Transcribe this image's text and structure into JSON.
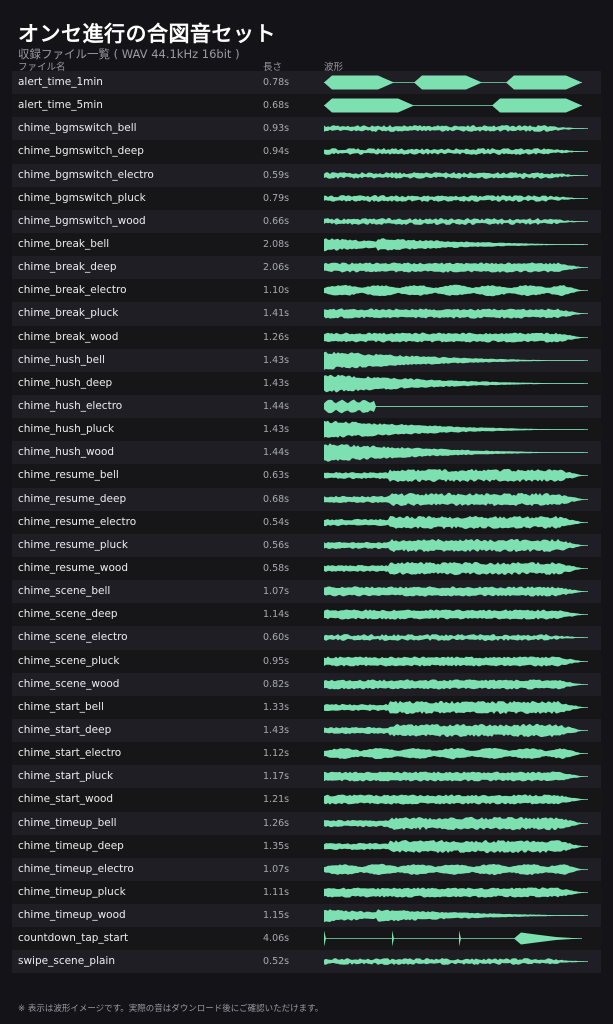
{
  "page": {
    "title": "オンセ進行の合図音セット",
    "subtitle": "収録ファイル一覧 ( WAV 44.1kHz 16bit )",
    "footnote": "※ 表示は波形イメージです。実際の音はダウンロード後にご確認いただけます。"
  },
  "columns": {
    "name": "ファイル名",
    "length": "長さ",
    "waveform": "波形"
  },
  "colors": {
    "accent": "#7de0b1",
    "background": "#141418"
  },
  "files": [
    {
      "name": "alert_time_1min",
      "length": "0.78s",
      "wave": "alert3"
    },
    {
      "name": "alert_time_5min",
      "length": "0.68s",
      "wave": "alert2"
    },
    {
      "name": "chime_bgmswitch_bell",
      "length": "0.93s",
      "wave": "noise"
    },
    {
      "name": "chime_bgmswitch_deep",
      "length": "0.94s",
      "wave": "noise"
    },
    {
      "name": "chime_bgmswitch_electro",
      "length": "0.59s",
      "wave": "noise"
    },
    {
      "name": "chime_bgmswitch_pluck",
      "length": "0.79s",
      "wave": "noise"
    },
    {
      "name": "chime_bgmswitch_wood",
      "length": "0.66s",
      "wave": "noise"
    },
    {
      "name": "chime_break_bell",
      "length": "2.08s",
      "wave": "decay2"
    },
    {
      "name": "chime_break_deep",
      "length": "2.06s",
      "wave": "sustain"
    },
    {
      "name": "chime_break_electro",
      "length": "1.10s",
      "wave": "pulse"
    },
    {
      "name": "chime_break_pluck",
      "length": "1.41s",
      "wave": "sustain"
    },
    {
      "name": "chime_break_wood",
      "length": "1.26s",
      "wave": "sustain"
    },
    {
      "name": "chime_hush_bell",
      "length": "1.43s",
      "wave": "decay"
    },
    {
      "name": "chime_hush_deep",
      "length": "1.43s",
      "wave": "decay"
    },
    {
      "name": "chime_hush_electro",
      "length": "1.44s",
      "wave": "shortpulse"
    },
    {
      "name": "chime_hush_pluck",
      "length": "1.43s",
      "wave": "decay"
    },
    {
      "name": "chime_hush_wood",
      "length": "1.44s",
      "wave": "decay"
    },
    {
      "name": "chime_resume_bell",
      "length": "0.63s",
      "wave": "rise"
    },
    {
      "name": "chime_resume_deep",
      "length": "0.68s",
      "wave": "rise"
    },
    {
      "name": "chime_resume_electro",
      "length": "0.54s",
      "wave": "rise"
    },
    {
      "name": "chime_resume_pluck",
      "length": "0.56s",
      "wave": "rise"
    },
    {
      "name": "chime_resume_wood",
      "length": "0.58s",
      "wave": "rise"
    },
    {
      "name": "chime_scene_bell",
      "length": "1.07s",
      "wave": "sustain"
    },
    {
      "name": "chime_scene_deep",
      "length": "1.14s",
      "wave": "sustain"
    },
    {
      "name": "chime_scene_electro",
      "length": "0.60s",
      "wave": "noise"
    },
    {
      "name": "chime_scene_pluck",
      "length": "0.95s",
      "wave": "sustain"
    },
    {
      "name": "chime_scene_wood",
      "length": "0.82s",
      "wave": "sustain"
    },
    {
      "name": "chime_start_bell",
      "length": "1.33s",
      "wave": "rise"
    },
    {
      "name": "chime_start_deep",
      "length": "1.43s",
      "wave": "rise"
    },
    {
      "name": "chime_start_electro",
      "length": "1.12s",
      "wave": "pulse"
    },
    {
      "name": "chime_start_pluck",
      "length": "1.17s",
      "wave": "sustain"
    },
    {
      "name": "chime_start_wood",
      "length": "1.21s",
      "wave": "sustain"
    },
    {
      "name": "chime_timeup_bell",
      "length": "1.26s",
      "wave": "rise"
    },
    {
      "name": "chime_timeup_deep",
      "length": "1.35s",
      "wave": "rise"
    },
    {
      "name": "chime_timeup_electro",
      "length": "1.07s",
      "wave": "pulse"
    },
    {
      "name": "chime_timeup_pluck",
      "length": "1.11s",
      "wave": "sustain"
    },
    {
      "name": "chime_timeup_wood",
      "length": "1.15s",
      "wave": "decay2"
    },
    {
      "name": "countdown_tap_start",
      "length": "4.06s",
      "wave": "ticks"
    },
    {
      "name": "swipe_scene_plain",
      "length": "0.52s",
      "wave": "noise"
    }
  ]
}
